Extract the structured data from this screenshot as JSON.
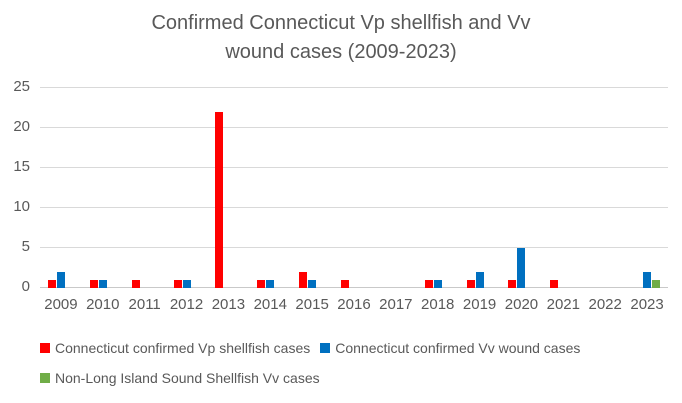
{
  "title_lines": [
    "Confirmed Connecticut Vp shellfish and Vv",
    "wound cases (2009-2023)"
  ],
  "chart_data": {
    "type": "bar",
    "title": "Confirmed Connecticut Vp shellfish and Vv wound cases (2009-2023)",
    "categories": [
      "2009",
      "2010",
      "2011",
      "2012",
      "2013",
      "2014",
      "2015",
      "2016",
      "2017",
      "2018",
      "2019",
      "2020",
      "2021",
      "2022",
      "2023"
    ],
    "series": [
      {
        "key": "vp-shellfish",
        "name": "Connecticut confirmed Vp shellfish cases",
        "color": "#ff0000",
        "values": [
          1,
          1,
          1,
          1,
          22,
          1,
          2,
          1,
          0,
          1,
          1,
          1,
          1,
          0,
          0
        ]
      },
      {
        "key": "vv-wound",
        "name": "Connecticut confirmed Vv wound cases",
        "color": "#0070c0",
        "values": [
          2,
          1,
          0,
          1,
          0,
          1,
          1,
          0,
          0,
          1,
          2,
          5,
          0,
          0,
          2
        ]
      },
      {
        "key": "non-lis-vv",
        "name": "Non-Long Island Sound Shellfish Vv cases",
        "color": "#70ad47",
        "values": [
          0,
          0,
          0,
          0,
          0,
          0,
          0,
          0,
          0,
          0,
          0,
          0,
          0,
          0,
          1
        ]
      }
    ],
    "xlabel": "",
    "ylabel": "",
    "ylim": [
      0,
      25
    ],
    "ytick_interval": 5,
    "ytick_labels": [
      "0",
      "5",
      "10",
      "15",
      "20",
      "25"
    ],
    "grid": true,
    "legend_position": "bottom",
    "styles": {
      "text_color": "#595959",
      "gridline_color": "#d9d9d9",
      "axis_line_color": "#c9c9c9",
      "background": "#ffffff"
    }
  }
}
